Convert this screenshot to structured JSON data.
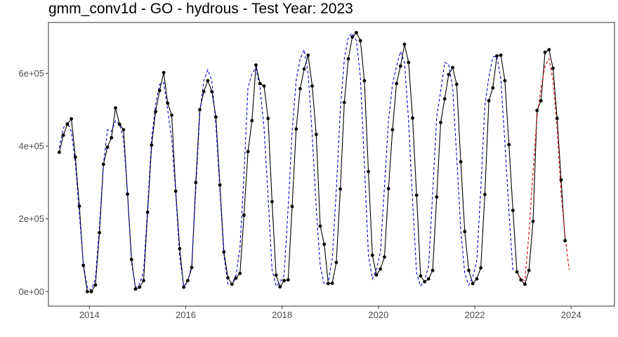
{
  "chart_data": {
    "type": "line",
    "title": "gmm_conv1d - GO - hydrous - Test Year: 2023",
    "xlabel": "",
    "ylabel": "",
    "x_ticks": [
      "2014",
      "2016",
      "2018",
      "2020",
      "2022",
      "2024"
    ],
    "y_ticks": [
      "0e+00",
      "2e+05",
      "4e+05",
      "6e+05"
    ],
    "xlim": [
      2013.15,
      2024.9
    ],
    "ylim": [
      -40000,
      740000
    ],
    "grid": false,
    "x_start": 2013.375,
    "x_step": 0.0833333,
    "series": [
      {
        "style": "black solid line with points",
        "color": "#000000",
        "values": [
          383000,
          430000,
          460000,
          475000,
          370000,
          235000,
          72000,
          0,
          0,
          18000,
          162000,
          350000,
          397000,
          423000,
          505000,
          460000,
          445000,
          268000,
          88000,
          7000,
          12000,
          30000,
          218000,
          403000,
          495000,
          553000,
          602000,
          518000,
          485000,
          276000,
          118000,
          12000,
          30000,
          66000,
          300000,
          500000,
          550000,
          580000,
          550000,
          480000,
          293000,
          109000,
          38000,
          20000,
          37000,
          50000,
          210000,
          385000,
          470000,
          623000,
          572000,
          565000,
          476000,
          247000,
          45000,
          13000,
          30000,
          32000,
          234000,
          447000,
          558000,
          612000,
          650000,
          565000,
          432000,
          180000,
          130000,
          22000,
          23000,
          80000,
          282000,
          520000,
          640000,
          700000,
          712000,
          690000,
          580000,
          330000,
          100000,
          46000,
          62000,
          95000,
          283000,
          445000,
          572000,
          620000,
          680000,
          630000,
          477000,
          265000,
          43000,
          27000,
          35000,
          58000,
          260000,
          465000,
          530000,
          597000,
          616000,
          570000,
          357000,
          165000,
          58000,
          22000,
          35000,
          65000,
          267000,
          525000,
          560000,
          648000,
          650000,
          580000,
          404000,
          223000,
          54000,
          32000,
          20000,
          58000,
          193000,
          498000,
          525000,
          658000,
          665000,
          614000,
          476000,
          307000,
          140000
        ]
      },
      {
        "style": "blue dashed fitted line",
        "color": "#0000cc",
        "values": [
          395000,
          450000,
          465000,
          440000,
          355000,
          215000,
          75000,
          10000,
          5000,
          35000,
          180000,
          350000,
          445000,
          440000,
          470000,
          460000,
          420000,
          270000,
          80000,
          10000,
          20000,
          55000,
          230000,
          420000,
          515000,
          570000,
          575000,
          500000,
          420000,
          270000,
          95000,
          15000,
          25000,
          75000,
          280000,
          490000,
          580000,
          610000,
          580000,
          460000,
          280000,
          100000,
          20000,
          20000,
          45000,
          120000,
          320000,
          560000,
          600000,
          615000,
          560000,
          450000,
          260000,
          60000,
          15000,
          25000,
          45000,
          230000,
          440000,
          580000,
          640000,
          665000,
          600000,
          430000,
          230000,
          70000,
          20000,
          25000,
          90000,
          280000,
          500000,
          640000,
          700000,
          710000,
          690000,
          590000,
          350000,
          100000,
          35000,
          60000,
          110000,
          290000,
          470000,
          570000,
          620000,
          660000,
          630000,
          470000,
          250000,
          50000,
          15000,
          30000,
          70000,
          270000,
          480000,
          550000,
          630000,
          625000,
          560000,
          370000,
          170000,
          50000,
          18000,
          40000,
          85000,
          280000,
          510000,
          590000,
          645000,
          648000,
          585000,
          410000,
          220000,
          55000
        ]
      },
      {
        "style": "red dashed test-year forecast",
        "color": "#e02020",
        "x_start": 2022.875,
        "values": [
          55000,
          35000,
          30000,
          160000,
          330000,
          480000,
          560000,
          620000,
          640000,
          580000,
          450000,
          270000,
          150000,
          60000
        ]
      }
    ]
  }
}
